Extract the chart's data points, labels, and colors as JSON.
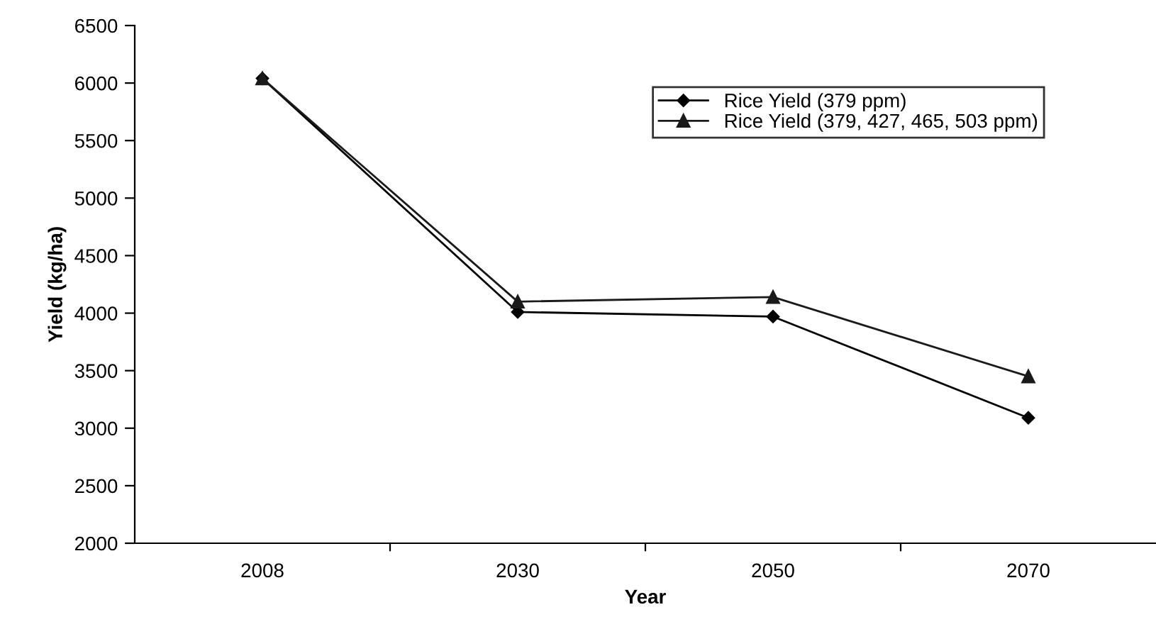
{
  "chart_data": {
    "type": "line",
    "xlabel": "Year",
    "ylabel": "Yield (kg/ha)",
    "categories": [
      "2008",
      "2030",
      "2050",
      "2070"
    ],
    "series": [
      {
        "name": "Rice Yield (379 ppm)",
        "color": "#000000",
        "marker": "diamond",
        "values": [
          6040,
          4010,
          3970,
          3090
        ]
      },
      {
        "name": "Rice Yield (379, 427, 465, 503 ppm)",
        "color": "#1a1a1a",
        "marker": "triangle",
        "values": [
          6040,
          4100,
          4140,
          3450
        ]
      }
    ],
    "ylim": [
      2000,
      6500
    ],
    "yticks": [
      2000,
      2500,
      3000,
      3500,
      4000,
      4500,
      5000,
      5500,
      6000,
      6500
    ],
    "grid": false,
    "legend": "top right",
    "line_style": "solid"
  }
}
